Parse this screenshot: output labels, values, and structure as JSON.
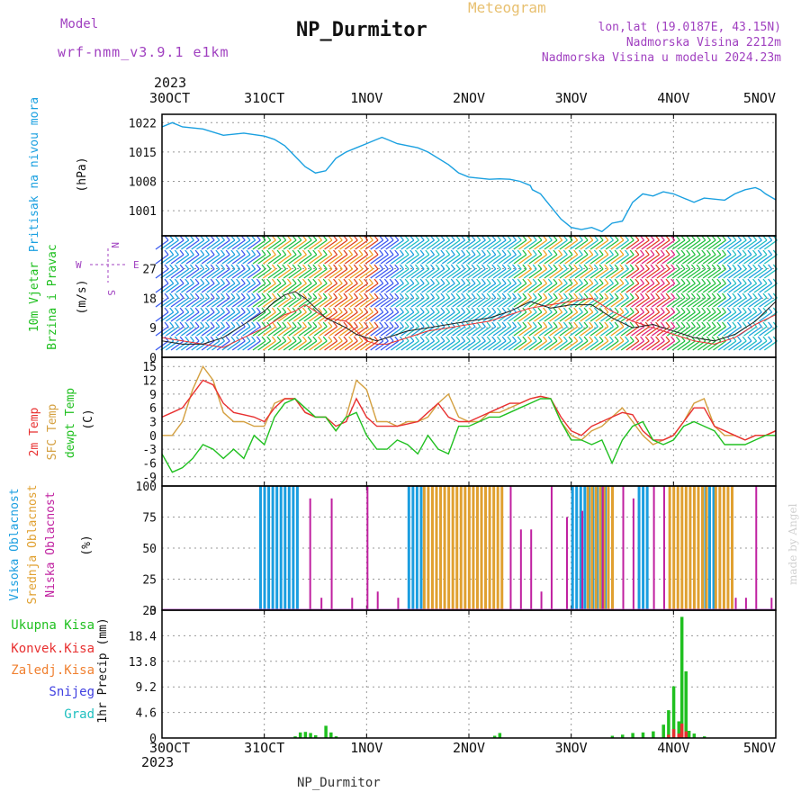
{
  "header": {
    "model_label": "Model",
    "model_name": "wrf-nmm_v3.9.1 e1km",
    "title": "NP_Durmitor",
    "subtitle": "Meteogram",
    "lonlat": "lon,lat (19.0187E, 43.15N)",
    "altitude": "Nadmorska Visina 2212m",
    "model_altitude": "Nadmorska Visina u modelu 2024.23m",
    "year_top": "2023",
    "year_bottom": "2023",
    "footer": "NP_Durmitor",
    "credit": "made by Angel"
  },
  "colors": {
    "pressure": "#1aa0e0",
    "temp2m": "#e83030",
    "sfc": "#d4a040",
    "dew": "#20c020",
    "cloud_high": "#1a9ee0",
    "cloud_mid": "#e0a030",
    "cloud_low": "#c020a0",
    "total": "#20c020",
    "conv": "#e83030",
    "frozen": "#f08030",
    "snow": "#4040e0",
    "grad": "#20c0c0",
    "model": "#a040c0"
  },
  "chart_data": [
    {
      "type": "line",
      "panel": "pressure",
      "ylabel_lines": [
        "Pritisak na nivou mora",
        "(hPa)"
      ],
      "x_ticks": [
        "30OCT",
        "31OCT",
        "1NOV",
        "2NOV",
        "3NOV",
        "4NOV",
        "5NOV"
      ],
      "yticks": [
        1001,
        1008,
        1015,
        1022
      ],
      "ylim": [
        995,
        1024
      ],
      "x": [
        0,
        0.1,
        0.2,
        0.4,
        0.6,
        0.8,
        1,
        1.1,
        1.2,
        1.3,
        1.4,
        1.5,
        1.6,
        1.65,
        1.7,
        1.8,
        1.9,
        2,
        2.1,
        2.15,
        2.2,
        2.3,
        2.5,
        2.6,
        2.8,
        2.9,
        3,
        3.2,
        3.3,
        3.4,
        3.5,
        3.6,
        3.62,
        3.7,
        3.8,
        3.9,
        4,
        4.1,
        4.2,
        4.3,
        4.4,
        4.5,
        4.6,
        4.7,
        4.8,
        4.9,
        5,
        5.1,
        5.2,
        5.3,
        5.5,
        5.6,
        5.7,
        5.8,
        5.85,
        5.9,
        6
      ],
      "series": [
        {
          "name": "",
          "values": [
            1021,
            1022,
            1021,
            1020.5,
            1019,
            1019.5,
            1018.8,
            1018,
            1016.5,
            1014,
            1011.5,
            1010,
            1010.5,
            1012,
            1013.5,
            1015,
            1016,
            1017,
            1018,
            1018.5,
            1018,
            1017,
            1016,
            1015,
            1012,
            1010,
            1009,
            1008.5,
            1008.6,
            1008.5,
            1008,
            1007,
            1006,
            1005,
            1002,
            999,
            997,
            996.5,
            997,
            996,
            998,
            998.5,
            1003,
            1005,
            1004.5,
            1005.5,
            1005,
            1004,
            1003,
            1004,
            1003.5,
            1005,
            1006,
            1006.5,
            1006,
            1005,
            1003.6
          ]
        }
      ]
    },
    {
      "type": "line",
      "panel": "wind",
      "ylabel_lines": [
        "10m Vjetar",
        "Brzina i Pravac",
        "(m/s)"
      ],
      "compass": {
        "n": "N",
        "s": "S",
        "e": "E",
        "w": "W"
      },
      "yticks": [
        0,
        9,
        18,
        27
      ],
      "ylim": [
        0,
        37
      ],
      "x": [
        0,
        0.2,
        0.4,
        0.6,
        0.8,
        1,
        1.1,
        1.2,
        1.3,
        1.4,
        1.5,
        1.6,
        1.8,
        1.9,
        2,
        2.1,
        2.2,
        2.4,
        2.6,
        2.8,
        3,
        3.2,
        3.4,
        3.6,
        3.8,
        4,
        4.2,
        4.4,
        4.6,
        4.8,
        5,
        5.2,
        5.4,
        5.6,
        5.8,
        6
      ],
      "series": [
        {
          "name": "",
          "color": "#e83030",
          "values": [
            6,
            5,
            4,
            3,
            6,
            9,
            11,
            13,
            14,
            16,
            14,
            12,
            11,
            8,
            5,
            4,
            4,
            6,
            8,
            9,
            10,
            11,
            13,
            15,
            16,
            17,
            18,
            14,
            11,
            9,
            7,
            5,
            4,
            6,
            10,
            13
          ]
        },
        {
          "name": "",
          "color": "#202020",
          "values": [
            5,
            4,
            4,
            6,
            10,
            14,
            17,
            19,
            20,
            18,
            15,
            12,
            9,
            7,
            6,
            5,
            6,
            8,
            9,
            10,
            11,
            12,
            14,
            17,
            15,
            16,
            16,
            12,
            9,
            10,
            8,
            6,
            5,
            7,
            11,
            17
          ]
        }
      ]
    },
    {
      "type": "line",
      "panel": "temperature",
      "ylabel_lines": [
        "2m Temp",
        "SFC Temp",
        "dewpt Temp",
        "(C)"
      ],
      "yticks": [
        -9,
        -6,
        -3,
        0,
        3,
        6,
        9,
        12,
        15
      ],
      "ylim": [
        -11,
        17
      ],
      "x": [
        0,
        0.1,
        0.2,
        0.3,
        0.4,
        0.5,
        0.6,
        0.7,
        0.8,
        0.9,
        1,
        1.1,
        1.2,
        1.3,
        1.4,
        1.5,
        1.6,
        1.7,
        1.8,
        1.9,
        2,
        2.1,
        2.2,
        2.3,
        2.4,
        2.5,
        2.6,
        2.7,
        2.8,
        2.9,
        3,
        3.1,
        3.2,
        3.3,
        3.4,
        3.5,
        3.6,
        3.7,
        3.8,
        3.9,
        4,
        4.1,
        4.2,
        4.3,
        4.4,
        4.5,
        4.6,
        4.7,
        4.8,
        4.9,
        5,
        5.1,
        5.2,
        5.3,
        5.4,
        5.5,
        5.6,
        5.7,
        5.8,
        5.9,
        6
      ],
      "series": [
        {
          "name": "2m Temp",
          "values": [
            4,
            5,
            6,
            9,
            12,
            11,
            7,
            5,
            4.5,
            4,
            3,
            6,
            8,
            8,
            5,
            4,
            4,
            2,
            3,
            8,
            4,
            2,
            2,
            2,
            2.5,
            3,
            5,
            7,
            4,
            3,
            3,
            4,
            5,
            6,
            7,
            7,
            8,
            8.5,
            8,
            4,
            1,
            0,
            2,
            3,
            4,
            5,
            4.5,
            1,
            -1,
            -1,
            0,
            3,
            6,
            6,
            2,
            1,
            0,
            -1,
            0,
            0,
            1
          ]
        },
        {
          "name": "SFC Temp",
          "values": [
            0,
            0,
            3,
            10,
            15,
            12,
            5,
            3,
            3,
            2,
            2,
            7,
            8,
            8,
            5,
            4,
            4,
            1,
            4,
            12,
            10,
            3,
            3,
            2,
            3,
            3,
            4,
            7,
            9,
            4,
            3,
            3,
            5,
            5,
            6,
            7,
            8,
            8.5,
            8,
            3,
            0,
            -1,
            1,
            2,
            4,
            6,
            3,
            0,
            -2,
            -1,
            0,
            3,
            7,
            8,
            2,
            0,
            0,
            -1,
            0,
            0,
            1
          ]
        },
        {
          "name": "dewpt Temp",
          "values": [
            -4,
            -8,
            -7,
            -5,
            -2,
            -3,
            -5,
            -3,
            -5,
            0,
            -2,
            4,
            7,
            8,
            6,
            4,
            4,
            1,
            4,
            5,
            0,
            -3,
            -3,
            -1,
            -2,
            -4,
            0,
            -3,
            -4,
            2,
            2,
            3,
            4,
            4,
            5,
            6,
            7,
            8,
            8,
            3,
            -1,
            -1,
            -2,
            -1,
            -6,
            -1,
            2,
            3,
            -1,
            -2,
            -1,
            2,
            3,
            2,
            1,
            -2,
            -2,
            -2,
            -1,
            0,
            0
          ]
        }
      ]
    },
    {
      "type": "bar",
      "panel": "clouds",
      "ylabel_lines": [
        "Visoka Oblacnost",
        "Srednja Oblacnost",
        "Niska Oblacnost",
        "(%)"
      ],
      "yticks": [
        0,
        25,
        50,
        75,
        100
      ],
      "ylim": [
        0,
        100
      ],
      "series": [
        {
          "name": "Visoka Oblacnost",
          "x_ranges": [
            [
              0.95,
              1.35
            ],
            [
              2.4,
              2.55
            ],
            [
              4.0,
              4.35
            ],
            [
              4.65,
              4.75
            ],
            [
              5.3,
              5.4
            ]
          ],
          "values": [
            100,
            100,
            100,
            100,
            100
          ]
        },
        {
          "name": "Srednja Oblacnost",
          "x_ranges": [
            [
              2.55,
              3.35
            ],
            [
              4.15,
              4.4
            ],
            [
              4.95,
              5.35
            ],
            [
              5.4,
              5.6
            ]
          ],
          "values": [
            100,
            100,
            100,
            100
          ]
        },
        {
          "name": "Niska Oblacnost",
          "x": [
            1.44,
            1.55,
            1.65,
            1.85,
            2.0,
            2.1,
            2.3,
            3.4,
            3.5,
            3.6,
            3.7,
            3.8,
            3.95,
            4.1,
            4.3,
            4.5,
            4.6,
            4.8,
            4.9,
            5.6,
            5.7,
            5.8,
            5.95
          ],
          "values": [
            90,
            10,
            90,
            10,
            100,
            15,
            10,
            100,
            65,
            65,
            15,
            100,
            75,
            80,
            100,
            100,
            90,
            100,
            100,
            10,
            10,
            100,
            10
          ]
        }
      ]
    },
    {
      "type": "bar",
      "panel": "precip",
      "ylabel_lines": [
        "Ukupna Kisa",
        "Konvek.Kisa",
        "Zaledj.Kisa",
        "Snijeg",
        "Grad",
        "1hr Precip (mm)"
      ],
      "yticks": [
        0,
        4.6,
        9.2,
        13.8,
        18.4,
        23
      ],
      "ylim": [
        0,
        23
      ],
      "series": [
        {
          "name": "Ukupna Kisa",
          "x": [
            1.3,
            1.35,
            1.4,
            1.45,
            1.5,
            1.6,
            1.65,
            1.7,
            3.25,
            3.3,
            4.4,
            4.5,
            4.6,
            4.7,
            4.8,
            4.9,
            4.95,
            5.0,
            5.05,
            5.08,
            5.12,
            5.15,
            5.2,
            5.3
          ],
          "values": [
            0.3,
            1.0,
            1.1,
            0.9,
            0.5,
            2.2,
            1.0,
            0.3,
            0.4,
            0.9,
            0.4,
            0.6,
            0.9,
            1.0,
            1.2,
            2.4,
            5.0,
            9.3,
            3.0,
            21.8,
            12.0,
            1.3,
            0.8,
            0.3
          ]
        },
        {
          "name": "Konvek.Kisa",
          "x": [
            4.95,
            5.0,
            5.05,
            5.08,
            5.12
          ],
          "values": [
            0.6,
            1.6,
            0.8,
            2.6,
            1.2
          ]
        }
      ]
    }
  ]
}
